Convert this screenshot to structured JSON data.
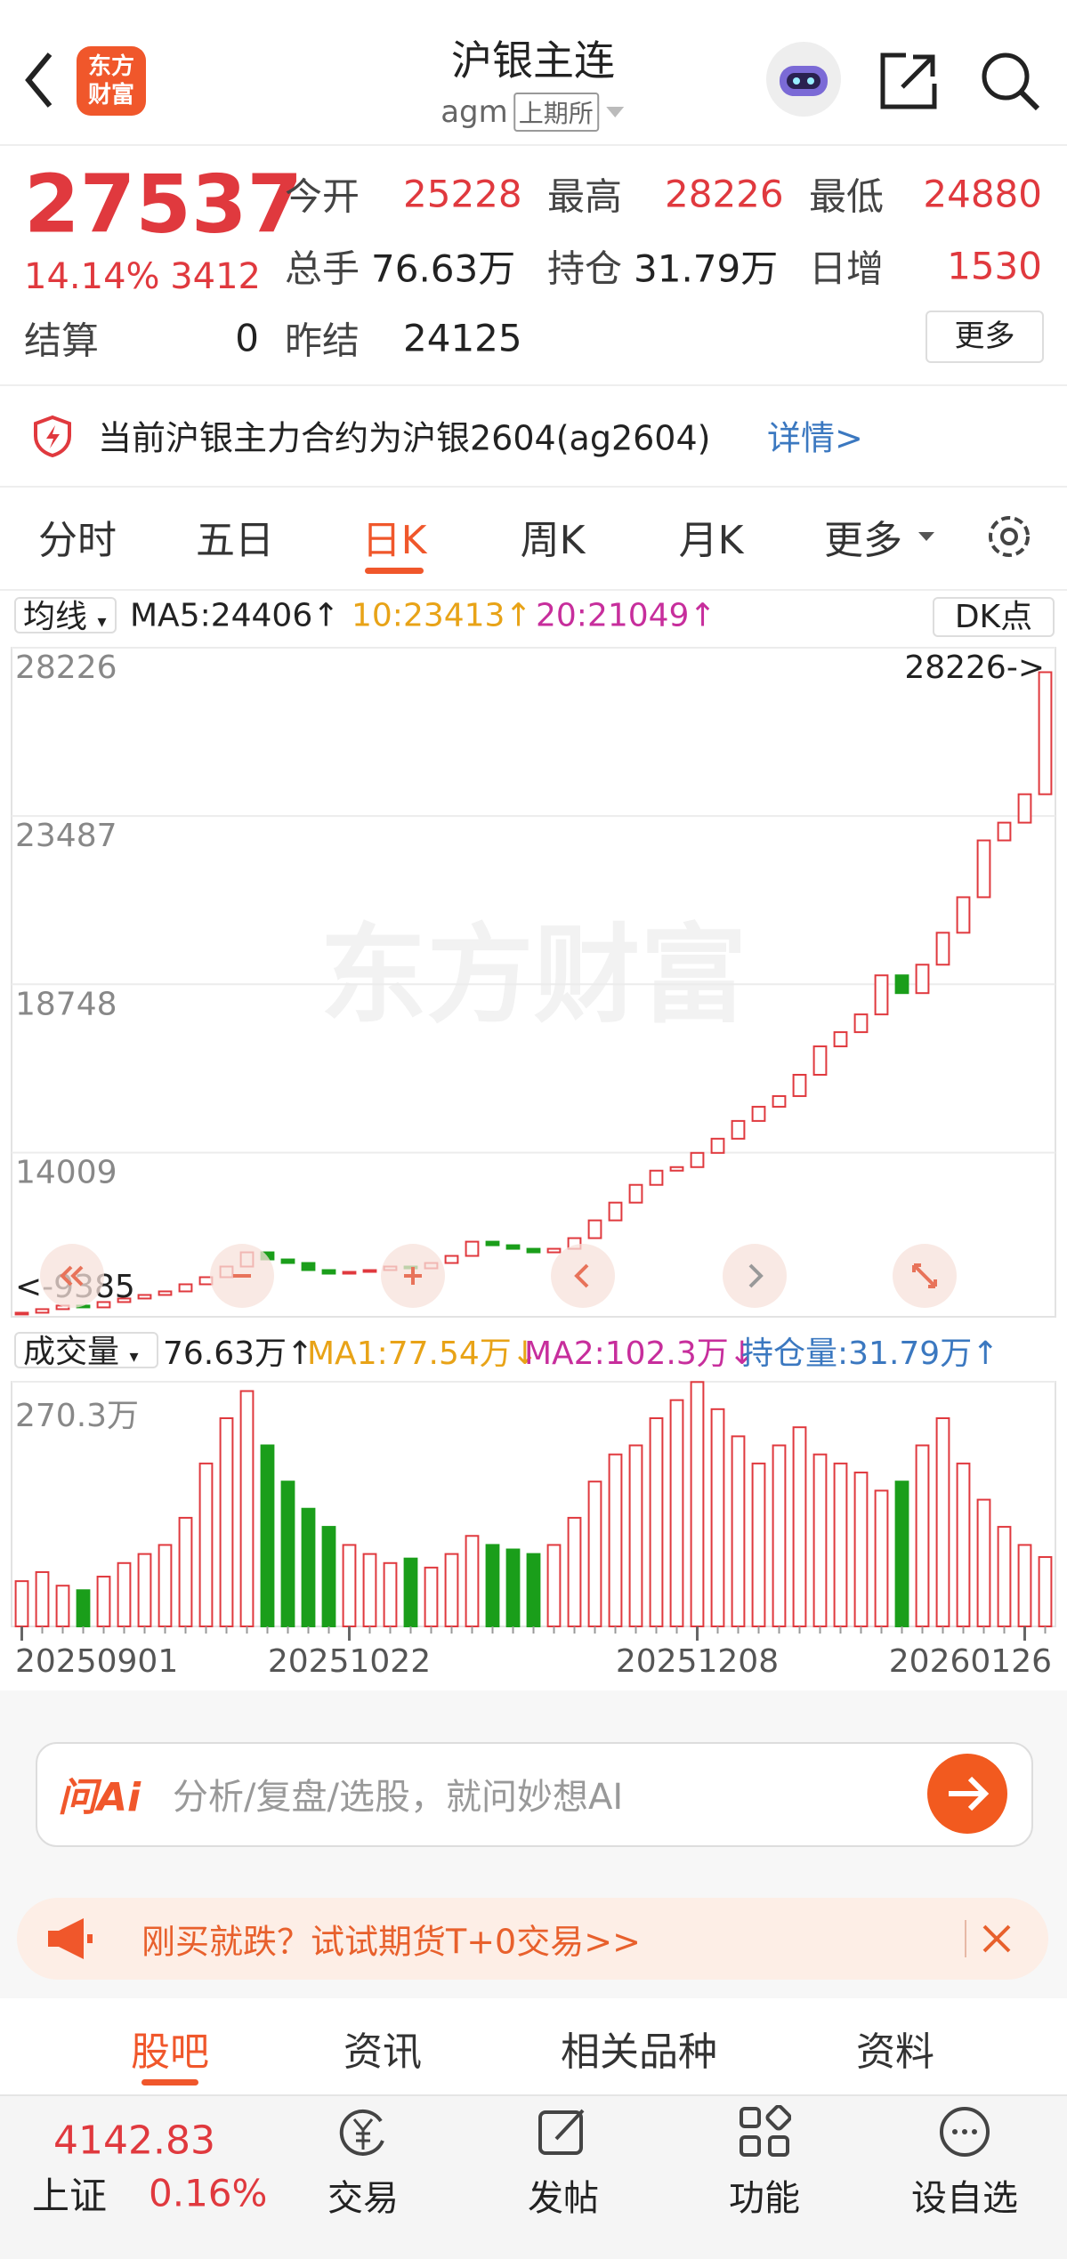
{
  "header": {
    "logo": [
      "东方",
      "财富"
    ],
    "title": "沪银主连",
    "code": "agm",
    "exchange": "上期所"
  },
  "quote": {
    "price": "27537",
    "change_pct": "14.14%",
    "change": "3412",
    "fields": [
      {
        "label": "今开",
        "value": "25228"
      },
      {
        "label": "最高",
        "value": "28226"
      },
      {
        "label": "最低",
        "value": "24880"
      },
      {
        "label": "总手",
        "value": "76.63万"
      },
      {
        "label": "持仓",
        "value": "31.79万"
      },
      {
        "label": "日增",
        "value": "1530"
      },
      {
        "label": "结算",
        "value": "0"
      },
      {
        "label": "昨结",
        "value": "24125"
      }
    ],
    "more": "更多"
  },
  "notice": {
    "text": "当前沪银主力合约为沪银2604(ag2604)",
    "link": "详情>"
  },
  "tabs": {
    "items": [
      "分时",
      "五日",
      "日K",
      "周K",
      "月K",
      "更多"
    ],
    "active": 2
  },
  "ma_bar": {
    "menu": "均线",
    "ma5": "MA5:24406↑",
    "ma10": "10:23413↑",
    "ma20": "20:21049↑",
    "dk": "DK点"
  },
  "volume_bar": {
    "menu": "成交量",
    "vol": "76.63万↑",
    "ma1": "MA1:77.54万↓",
    "ma2": "MA2:102.3万↓",
    "oi": "持仓量:31.79万↑"
  },
  "chart_data": [
    {
      "type": "candlestick",
      "watermark": "东方财富",
      "values": [
        9500,
        9600,
        9700,
        9650,
        9800,
        9900,
        10000,
        10100,
        10300,
        10500,
        10800,
        11200,
        11000,
        10900,
        10700,
        10600,
        10650,
        10700,
        10800,
        10750,
        10900,
        11100,
        11500,
        11400,
        11300,
        11200,
        11300,
        11600,
        12100,
        12600,
        13100,
        13500,
        13600,
        14000,
        14400,
        14900,
        15300,
        15600,
        16200,
        17000,
        17400,
        17900,
        19000,
        18500,
        19300,
        20200,
        21200,
        22800,
        23300,
        24100,
        27537
      ],
      "ylim": [
        9385,
        28226
      ],
      "yticks": [
        28226,
        23487,
        18748,
        14009
      ],
      "annotations": [
        "28226->",
        "<-9385"
      ],
      "up_color": "#e0393e",
      "down_color": "#1a9e1a",
      "grid": true
    },
    {
      "type": "bar",
      "categories": [
        "20250901",
        null,
        null,
        null,
        null,
        null,
        null,
        null,
        null,
        null,
        null,
        null,
        null,
        null,
        null,
        null,
        "20251022",
        null,
        null,
        null,
        null,
        null,
        null,
        null,
        null,
        null,
        null,
        null,
        null,
        null,
        null,
        null,
        null,
        "20251208",
        null,
        null,
        null,
        null,
        null,
        null,
        null,
        null,
        null,
        null,
        null,
        null,
        null,
        null,
        null,
        "20260126",
        null
      ],
      "values": [
        50,
        60,
        45,
        40,
        55,
        70,
        80,
        90,
        120,
        180,
        230,
        260,
        200,
        160,
        130,
        110,
        90,
        80,
        70,
        75,
        65,
        80,
        100,
        90,
        85,
        80,
        90,
        120,
        160,
        190,
        200,
        230,
        250,
        270,
        240,
        210,
        180,
        200,
        220,
        190,
        180,
        170,
        150,
        160,
        200,
        230,
        180,
        140,
        110,
        90,
        76.63
      ],
      "ylim": [
        0,
        270.3
      ],
      "yticks": [
        {
          "value": 270.3,
          "label": "270.3万"
        }
      ]
    }
  ],
  "ai": {
    "brand": "问Ai",
    "placeholder": "分析/复盘/选股，就问妙想AI"
  },
  "banner": "刚买就跌？试试期货T+0交易>>",
  "sections": {
    "items": [
      "股吧",
      "资讯",
      "相关品种",
      "资料"
    ],
    "active": 0
  },
  "footer": {
    "index_value": "4142.83",
    "index_name": "上证",
    "index_change": "0.16%",
    "nav": [
      "交易",
      "发帖",
      "功能",
      "设自选"
    ]
  }
}
